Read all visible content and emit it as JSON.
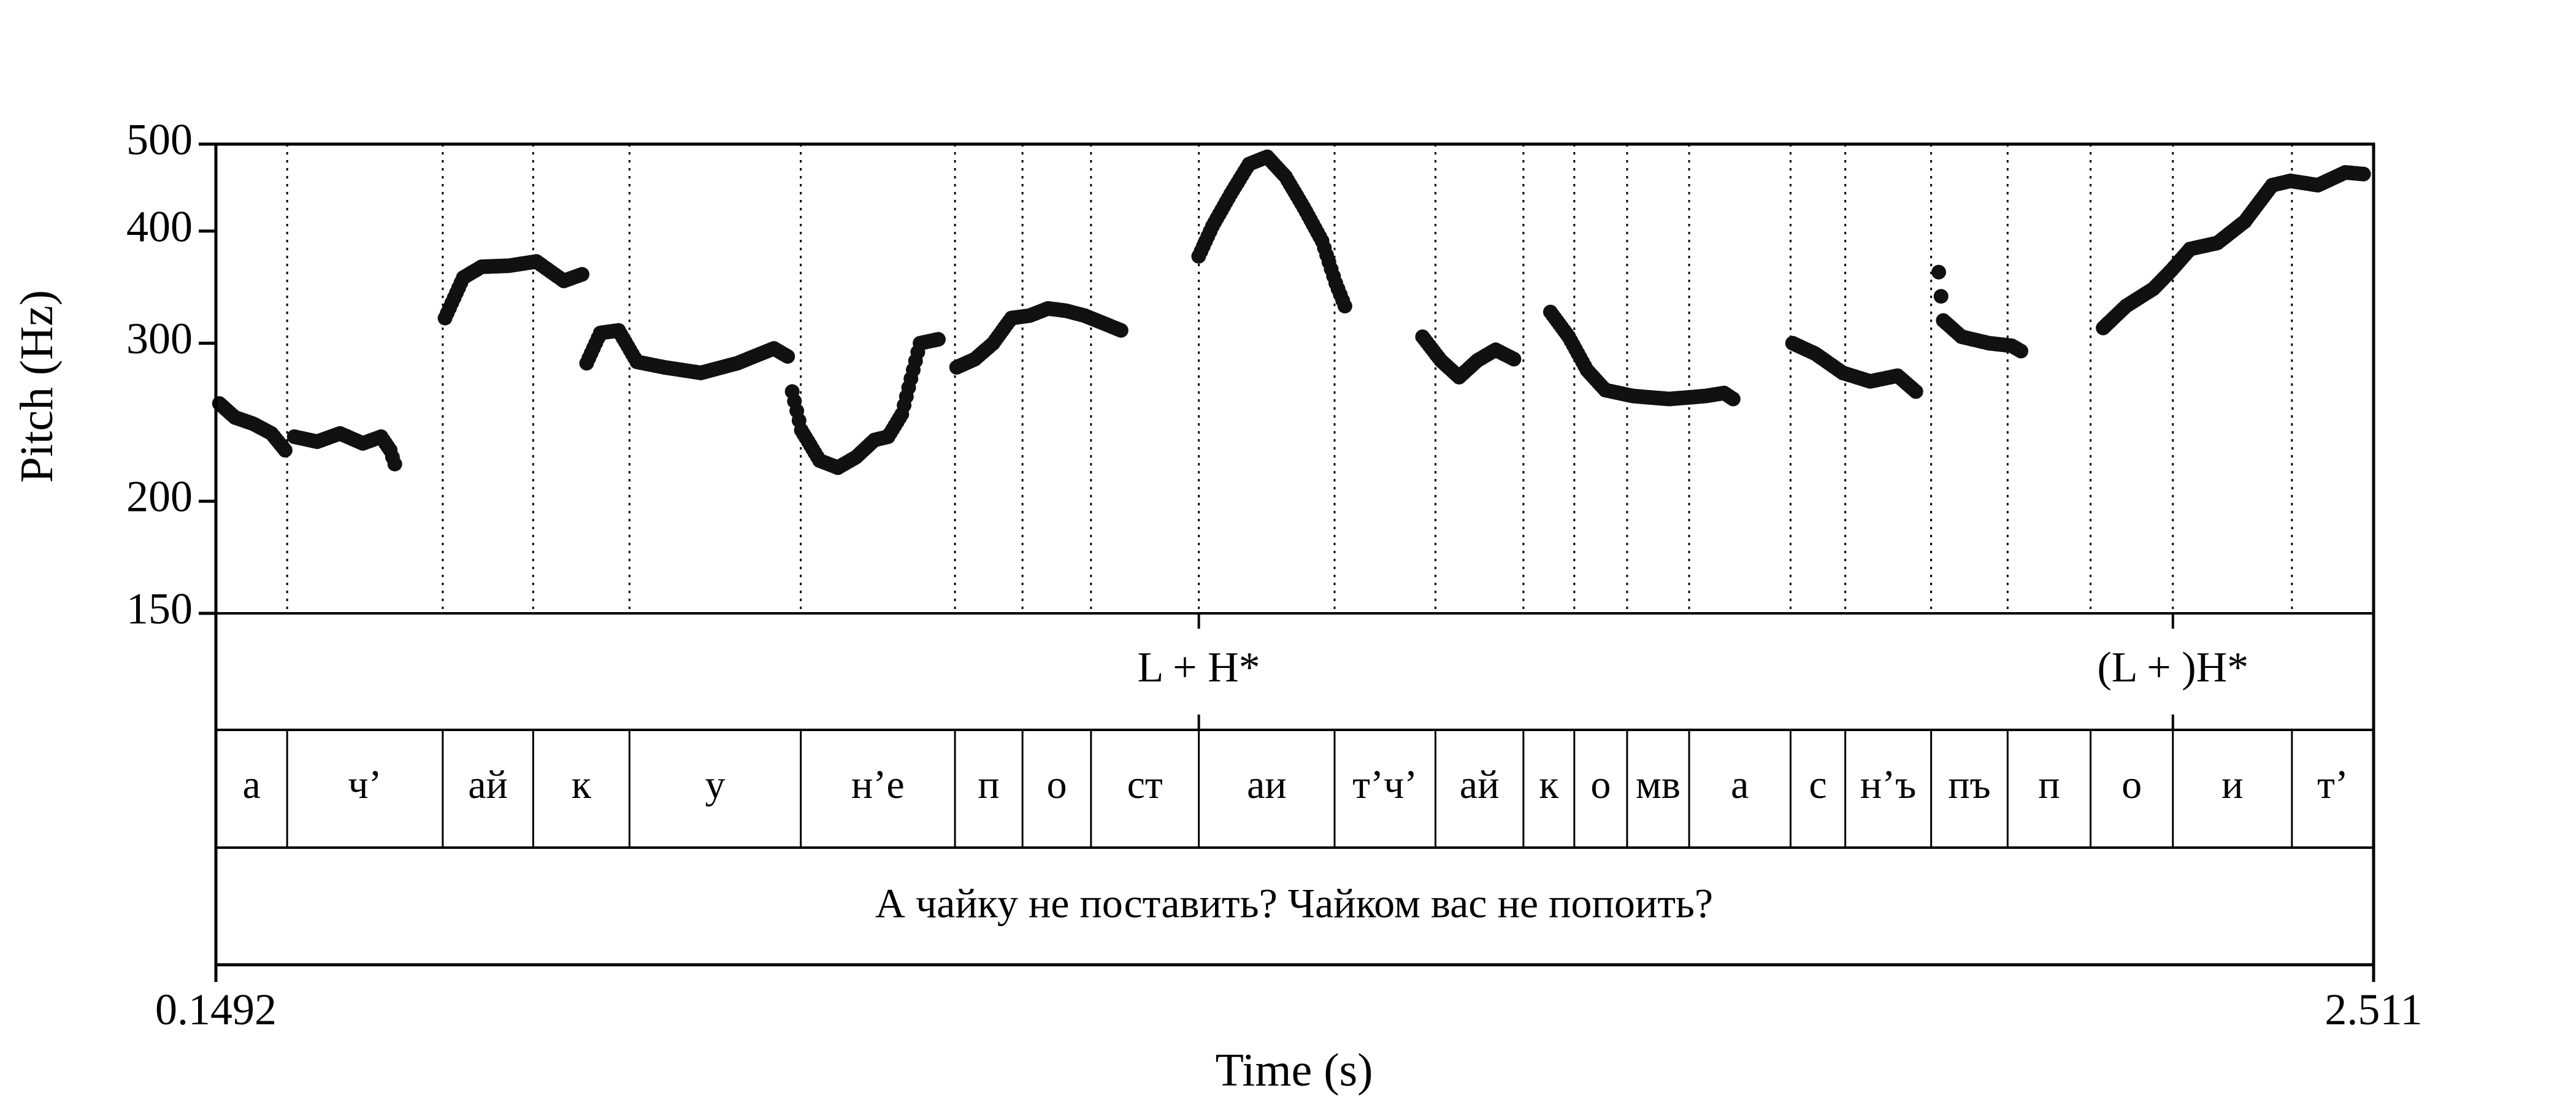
{
  "chart_data": {
    "type": "scatter",
    "title": "",
    "xlabel": "Time (s)",
    "ylabel": "Pitch (Hz)",
    "xlim": [
      0.1492,
      2.511
    ],
    "ylim": [
      150,
      500
    ],
    "yscale": "log",
    "yticks": [
      150,
      200,
      300,
      400,
      500
    ],
    "xtick_labels": [
      "0.1492",
      "2.511"
    ],
    "grid": false,
    "marker_color": "#111111",
    "boundary_times": [
      0.2272,
      0.3975,
      0.4965,
      0.6019,
      0.7894,
      0.9582,
      1.0321,
      1.1071,
      1.2251,
      1.3737,
      1.4841,
      1.5804,
      1.6361,
      1.6939,
      1.7618,
      1.8728,
      1.9327,
      2.0267,
      2.1104,
      2.2012,
      2.2913,
      2.4216
    ],
    "segments": [
      "а",
      "ч’",
      "ай",
      "к",
      "у",
      "н’е",
      "п",
      "о",
      "ст",
      "аи",
      "т’ч’",
      "ай",
      "к",
      "о",
      "мв",
      "а",
      "с",
      "н’ъ",
      "пъ",
      "п",
      "о",
      "и",
      "т’"
    ],
    "tones": [
      {
        "time": 1.2251,
        "label": "L + H*"
      },
      {
        "time": 2.2913,
        "label": "(L + )H*"
      }
    ],
    "sentence": "А чайку не поставить? Чайком вас не попоить?",
    "pitch_contours": [
      {
        "t": [
          0.153,
          0.17,
          0.19,
          0.21,
          0.225
        ],
        "f0": [
          257,
          248,
          244,
          238,
          228
        ]
      },
      {
        "t": [
          0.235,
          0.26,
          0.285,
          0.31,
          0.33,
          0.34,
          0.345
        ],
        "f0": [
          236,
          233,
          238,
          232,
          236,
          228,
          220
        ]
      },
      {
        "t": [
          0.4,
          0.42,
          0.44,
          0.47,
          0.5,
          0.53,
          0.55
        ],
        "f0": [
          320,
          355,
          365,
          366,
          370,
          352,
          358
        ]
      },
      {
        "t": [
          0.555,
          0.57,
          0.59,
          0.61,
          0.64,
          0.68,
          0.72,
          0.76,
          0.775
        ],
        "f0": [
          285,
          308,
          310,
          286,
          282,
          278,
          285,
          296,
          290
        ]
      },
      {
        "t": [
          0.78,
          0.79,
          0.81,
          0.83,
          0.85,
          0.87,
          0.885,
          0.9,
          0.92,
          0.94
        ],
        "f0": [
          265,
          240,
          222,
          218,
          224,
          234,
          236,
          250,
          300,
          303
        ]
      },
      {
        "t": [
          0.96,
          0.98,
          1.0,
          1.02,
          1.04,
          1.06,
          1.08,
          1.1,
          1.12,
          1.14
        ],
        "f0": [
          282,
          288,
          300,
          320,
          322,
          328,
          326,
          322,
          316,
          310
        ]
      },
      {
        "t": [
          1.225,
          1.24,
          1.26,
          1.28,
          1.3,
          1.32,
          1.34,
          1.36,
          1.375,
          1.385
        ],
        "f0": [
          375,
          405,
          440,
          475,
          484,
          460,
          425,
          390,
          350,
          330
        ]
      },
      {
        "t": [
          1.47,
          1.49,
          1.51,
          1.53,
          1.55,
          1.57
        ],
        "f0": [
          305,
          287,
          275,
          287,
          295,
          288
        ]
      },
      {
        "t": [
          1.61,
          1.63,
          1.65,
          1.67,
          1.7,
          1.74,
          1.78,
          1.8,
          1.81
        ],
        "f0": [
          325,
          305,
          280,
          266,
          262,
          260,
          262,
          264,
          260
        ]
      },
      {
        "t": [
          1.875,
          1.9,
          1.93,
          1.96,
          1.99,
          2.01
        ],
        "f0": [
          300,
          292,
          278,
          272,
          276,
          265
        ]
      },
      {
        "t": [
          2.035,
          2.04,
          2.06,
          2.09,
          2.115,
          2.125
        ],
        "f0": [
          360,
          318,
          305,
          300,
          298,
          294
        ]
      },
      {
        "t": [
          2.215,
          2.24,
          2.27,
          2.29,
          2.31,
          2.34,
          2.37,
          2.4,
          2.42,
          2.45,
          2.48,
          2.5
        ],
        "f0": [
          312,
          330,
          345,
          362,
          382,
          388,
          410,
          450,
          455,
          450,
          465,
          463
        ]
      }
    ]
  }
}
